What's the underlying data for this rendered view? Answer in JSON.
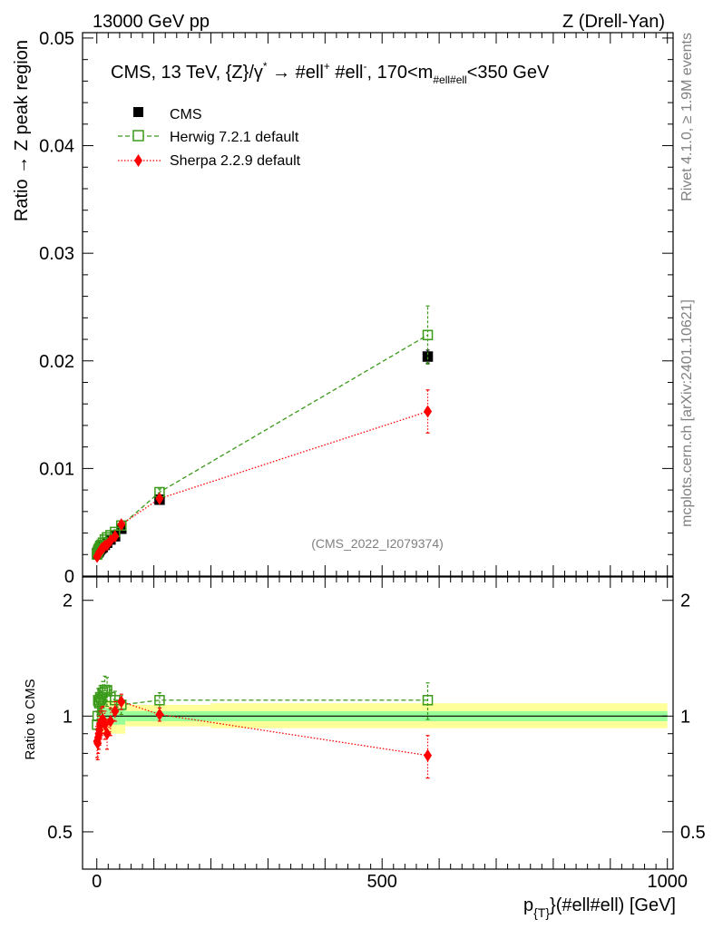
{
  "header": {
    "left": "13000 GeV pp",
    "right": "Z (Drell-Yan)"
  },
  "side_labels": {
    "rivet": "Rivet 4.1.0, ≥ 1.9M events",
    "mcplots": "mcplots.cern.ch [arXiv:2401.10621]"
  },
  "watermark": "(CMS_2022_I2079374)",
  "colors": {
    "cms": "#000000",
    "herwig": "#3a9a1a",
    "sherpa": "#ff0000",
    "band_inner": "#99ff99",
    "band_outer": "#ffff99",
    "side_text": "#808080"
  },
  "chart_data": [
    {
      "type": "scatter",
      "panel": "main",
      "title": "CMS, 13 TeV, {Z}/γ* → #ell⁺ #ell⁻, 170<m#ell#ell<350 GeV",
      "title_parts": {
        "a": "CMS, 13 TeV, {Z}/γ",
        "a_sup": "*",
        "b": " →  #ell",
        "b_sup": "+",
        "c": " #ell",
        "c_sup": "-",
        "d": ", 170<m",
        "d_sub": "#ell#ell",
        "e": "<350 GeV"
      },
      "ylabel": "Ratio → Z peak region",
      "ylim": [
        0,
        0.0505
      ],
      "yticks": [
        0,
        0.01,
        0.02,
        0.03,
        0.04,
        0.05
      ],
      "ytick_labels": [
        "0",
        "0.01",
        "0.02",
        "0.03",
        "0.04",
        "0.05"
      ],
      "legend": [
        "CMS",
        "Herwig 7.2.1 default",
        "Sherpa 2.2.9 default"
      ],
      "legend_position": "top-left",
      "series": [
        {
          "name": "CMS",
          "x": [
            0.5,
            1.5,
            2.5,
            3.5,
            4.5,
            6,
            8,
            10.5,
            14,
            18,
            24,
            32,
            43,
            110,
            580
          ],
          "y": [
            0.0021,
            0.0022,
            0.0022,
            0.0023,
            0.0024,
            0.0025,
            0.0026,
            0.0027,
            0.0029,
            0.0031,
            0.0034,
            0.0037,
            0.0044,
            0.0071,
            0.0204
          ],
          "yerr": [
            0.0001,
            0.0001,
            0.0001,
            0.0001,
            0.0001,
            0.0001,
            0.0001,
            0.0001,
            0.0001,
            0.0001,
            0.0001,
            0.0002,
            0.0002,
            0.0003,
            0.0006
          ]
        },
        {
          "name": "Herwig 7.2.1 default",
          "x": [
            0.5,
            1.5,
            2.5,
            3.5,
            4.5,
            6,
            8,
            10.5,
            14,
            18,
            24,
            32,
            43,
            110,
            580
          ],
          "y": [
            0.002,
            0.0022,
            0.0024,
            0.0025,
            0.0026,
            0.0028,
            0.0029,
            0.0031,
            0.0034,
            0.0036,
            0.0038,
            0.0041,
            0.0047,
            0.0078,
            0.0224
          ],
          "yerr": [
            0.0002,
            0.0002,
            0.0002,
            0.0002,
            0.0002,
            0.0002,
            0.0002,
            0.0002,
            0.0002,
            0.0002,
            0.0002,
            0.0002,
            0.0003,
            0.0003,
            0.0027
          ]
        },
        {
          "name": "Sherpa 2.2.9 default",
          "x": [
            0.5,
            1.5,
            2.5,
            3.5,
            4.5,
            6,
            8,
            10.5,
            14,
            18,
            24,
            32,
            43,
            110,
            580
          ],
          "y": [
            0.0018,
            0.0019,
            0.002,
            0.0021,
            0.0022,
            0.0023,
            0.0025,
            0.0026,
            0.0028,
            0.0029,
            0.0033,
            0.0037,
            0.0048,
            0.0072,
            0.0153
          ],
          "yerr": [
            0.0002,
            0.0002,
            0.0002,
            0.0002,
            0.0002,
            0.0002,
            0.0002,
            0.0002,
            0.0002,
            0.0002,
            0.0002,
            0.0002,
            0.0003,
            0.0003,
            0.002
          ]
        }
      ]
    },
    {
      "type": "scatter",
      "panel": "ratio",
      "ylabel": "Ratio to CMS",
      "xlabel_parts": {
        "a": "p",
        "sub": "{T}",
        "b": "}(#ell#ell) [GeV]"
      },
      "xlabel": "p{T}}(#ell#ell) [GeV]",
      "xlim": [
        -25,
        1010
      ],
      "xticks": [
        0,
        500,
        1000
      ],
      "xtick_labels": [
        "0",
        "500",
        "1000"
      ],
      "ylim": [
        0.4,
        2.3
      ],
      "yticks": [
        0.5,
        1,
        2
      ],
      "ytick_labels": [
        "0.5",
        "1",
        "2"
      ],
      "band": {
        "x_edges": [
          0,
          50,
          200,
          1000
        ],
        "inner": [
          [
            0.95,
            1.05
          ],
          [
            0.97,
            1.03
          ],
          [
            0.97,
            1.03
          ]
        ],
        "outer": [
          [
            0.9,
            1.1
          ],
          [
            0.94,
            1.07
          ],
          [
            0.93,
            1.08
          ]
        ]
      },
      "series": [
        {
          "name": "Herwig 7.2.1 default",
          "x": [
            0.5,
            1.5,
            2.5,
            3.5,
            4.5,
            6,
            8,
            10.5,
            14,
            18,
            24,
            32,
            43,
            110,
            580
          ],
          "y": [
            0.95,
            1.0,
            1.1,
            1.09,
            1.08,
            1.12,
            1.11,
            1.15,
            1.17,
            1.16,
            1.12,
            1.1,
            1.07,
            1.1,
            1.1
          ],
          "yerr": [
            0.08,
            0.08,
            0.08,
            0.08,
            0.08,
            0.08,
            0.08,
            0.08,
            0.1,
            0.1,
            0.08,
            0.06,
            0.06,
            0.05,
            0.12
          ]
        },
        {
          "name": "Sherpa 2.2.9 default",
          "x": [
            0.5,
            1.5,
            2.5,
            3.5,
            4.5,
            6,
            8,
            10.5,
            14,
            18,
            24,
            32,
            43,
            110,
            580
          ],
          "y": [
            0.86,
            0.85,
            0.88,
            0.9,
            0.92,
            0.95,
            0.97,
            0.98,
            0.95,
            0.9,
            0.97,
            1.03,
            1.09,
            1.01,
            0.79
          ],
          "yerr": [
            0.08,
            0.08,
            0.08,
            0.08,
            0.08,
            0.08,
            0.08,
            0.08,
            0.08,
            0.08,
            0.08,
            0.06,
            0.05,
            0.04,
            0.1
          ]
        }
      ]
    }
  ]
}
